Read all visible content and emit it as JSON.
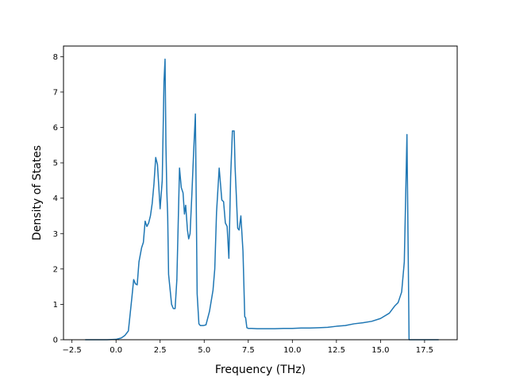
{
  "chart_data": {
    "type": "line",
    "title": "",
    "xlabel": "Frequency (THz)",
    "ylabel": "Density of States",
    "xlim": [
      -2.98,
      19.35
    ],
    "ylim": [
      0,
      8.3
    ],
    "xticks": [
      -2.5,
      0.0,
      2.5,
      5.0,
      7.5,
      10.0,
      12.5,
      15.0,
      17.5
    ],
    "xtick_labels": [
      "−2.5",
      "0.0",
      "2.5",
      "5.0",
      "7.5",
      "10.0",
      "12.5",
      "15.0",
      "17.5"
    ],
    "yticks": [
      0,
      1,
      2,
      3,
      4,
      5,
      6,
      7,
      8
    ],
    "ytick_labels": [
      "0",
      "1",
      "2",
      "3",
      "4",
      "5",
      "6",
      "7",
      "8"
    ],
    "grid": false,
    "legend": "none",
    "series": [
      {
        "color": "#1f77b4",
        "x": [
          -1.75,
          -0.5,
          0.0,
          0.3,
          0.5,
          0.7,
          0.9,
          1.0,
          1.1,
          1.2,
          1.3,
          1.45,
          1.55,
          1.65,
          1.75,
          1.85,
          1.95,
          2.05,
          2.15,
          2.25,
          2.35,
          2.5,
          2.62,
          2.72,
          2.78,
          2.83,
          2.88,
          2.93,
          2.98,
          3.05,
          3.15,
          3.25,
          3.35,
          3.45,
          3.6,
          3.7,
          3.8,
          3.88,
          3.95,
          4.05,
          4.12,
          4.2,
          4.3,
          4.4,
          4.5,
          4.6,
          4.7,
          4.78,
          4.85,
          4.95,
          5.1,
          5.3,
          5.5,
          5.6,
          5.7,
          5.85,
          6.0,
          6.1,
          6.2,
          6.3,
          6.4,
          6.5,
          6.6,
          6.7,
          6.75,
          6.82,
          6.9,
          6.98,
          7.08,
          7.2,
          7.3,
          7.35,
          7.42,
          7.5,
          7.6,
          7.7,
          8.0,
          8.5,
          9.0,
          9.5,
          10.0,
          10.5,
          11.0,
          11.5,
          12.0,
          12.5,
          13.0,
          13.5,
          14.0,
          14.5,
          15.0,
          15.5,
          15.8,
          16.0,
          16.2,
          16.35,
          16.5,
          16.58,
          16.62,
          16.65,
          16.68,
          16.72,
          17.0,
          18.3
        ],
        "y": [
          0.0,
          0.0,
          0.01,
          0.05,
          0.12,
          0.25,
          1.2,
          1.7,
          1.58,
          1.55,
          2.2,
          2.6,
          2.75,
          3.35,
          3.2,
          3.3,
          3.5,
          3.85,
          4.4,
          5.15,
          4.95,
          3.7,
          4.5,
          7.3,
          7.93,
          5.5,
          4.2,
          3.5,
          1.85,
          1.5,
          1.0,
          0.88,
          0.88,
          1.7,
          4.85,
          4.3,
          4.15,
          3.55,
          3.8,
          3.1,
          2.85,
          3.0,
          4.1,
          5.3,
          6.38,
          1.3,
          0.45,
          0.4,
          0.4,
          0.4,
          0.42,
          0.8,
          1.4,
          2.0,
          3.6,
          4.85,
          3.95,
          3.9,
          3.3,
          3.2,
          2.3,
          4.6,
          5.9,
          5.9,
          4.9,
          4.1,
          3.15,
          3.1,
          3.5,
          2.5,
          0.65,
          0.62,
          0.34,
          0.32,
          0.32,
          0.32,
          0.31,
          0.31,
          0.31,
          0.32,
          0.32,
          0.33,
          0.33,
          0.34,
          0.35,
          0.38,
          0.4,
          0.45,
          0.48,
          0.52,
          0.6,
          0.75,
          0.95,
          1.05,
          1.35,
          2.2,
          5.8,
          2.0,
          0.0,
          0.0,
          0.0,
          0.0,
          0.0,
          0.0
        ]
      }
    ]
  }
}
